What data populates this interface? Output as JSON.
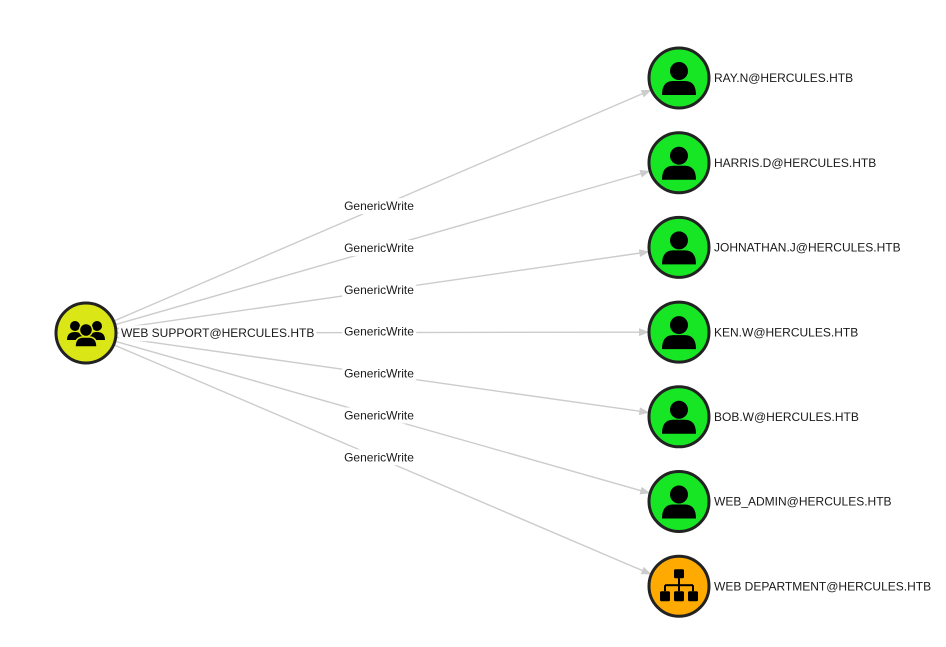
{
  "colors": {
    "group": "#dbe617",
    "user": "#17e625",
    "ou": "#ffaa00",
    "edge": "#cccccc",
    "outline": "#222222"
  },
  "source": {
    "label": "WEB SUPPORT@HERCULES.HTB",
    "type": "group",
    "icon": "users-icon"
  },
  "edges": [
    {
      "label": "GenericWrite",
      "target": {
        "label": "RAY.N@HERCULES.HTB",
        "type": "user",
        "icon": "user-icon"
      }
    },
    {
      "label": "GenericWrite",
      "target": {
        "label": "HARRIS.D@HERCULES.HTB",
        "type": "user",
        "icon": "user-icon"
      }
    },
    {
      "label": "GenericWrite",
      "target": {
        "label": "JOHNATHAN.J@HERCULES.HTB",
        "type": "user",
        "icon": "user-icon"
      }
    },
    {
      "label": "GenericWrite",
      "target": {
        "label": "KEN.W@HERCULES.HTB",
        "type": "user",
        "icon": "user-icon"
      }
    },
    {
      "label": "GenericWrite",
      "target": {
        "label": "BOB.W@HERCULES.HTB",
        "type": "user",
        "icon": "user-icon"
      }
    },
    {
      "label": "GenericWrite",
      "target": {
        "label": "WEB_ADMIN@HERCULES.HTB",
        "type": "user",
        "icon": "user-icon"
      }
    },
    {
      "label": "GenericWrite",
      "target": {
        "label": "WEB DEPARTMENT@HERCULES.HTB",
        "type": "ou",
        "icon": "sitemap-icon"
      }
    }
  ]
}
